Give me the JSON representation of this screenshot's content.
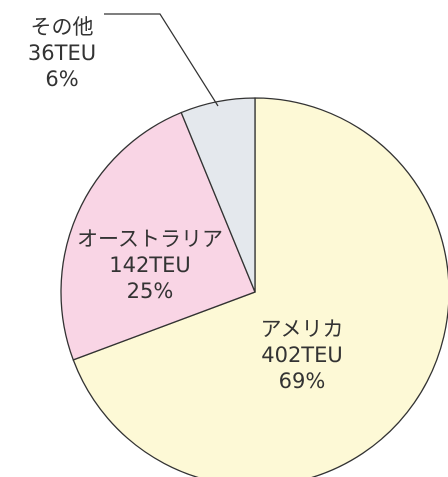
{
  "chart_data": {
    "type": "pie",
    "categories": [
      "アメリカ",
      "オーストラリア",
      "その他"
    ],
    "values": [
      402,
      142,
      36
    ],
    "value_labels": [
      "402TEU",
      "142TEU",
      "36TEU"
    ],
    "percentages": [
      69,
      25,
      6
    ],
    "percentage_labels": [
      "69%",
      "25%",
      "6%"
    ],
    "colors": [
      "#fdf9d6",
      "#f9d5e5",
      "#e4e8ed"
    ]
  }
}
